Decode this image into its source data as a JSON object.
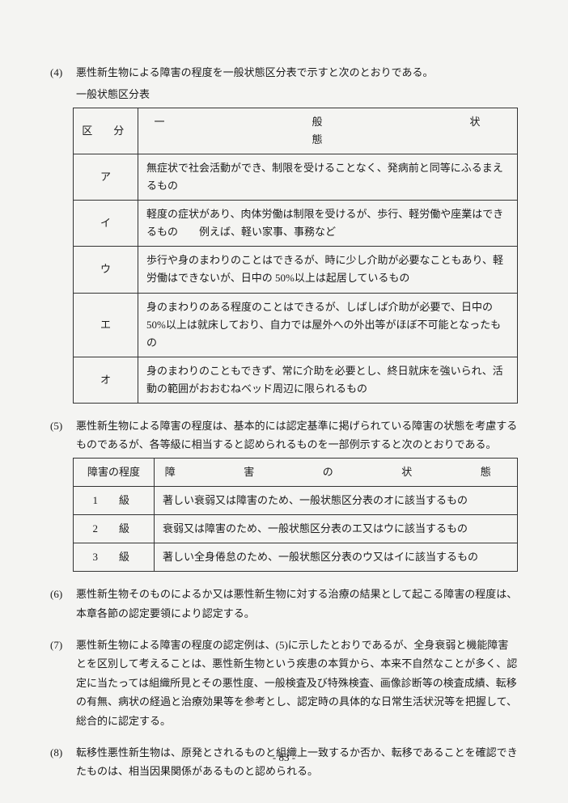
{
  "item4": {
    "num": "(4)",
    "text": "悪性新生物による障害の程度を一般状態区分表で示すと次のとおりである。",
    "tableTitle": "一般状態区分表",
    "header": {
      "left": "区　分",
      "right": "一　　　　般　　　　状　　　　態"
    },
    "rows": [
      {
        "label": "ア",
        "desc": "無症状で社会活動ができ、制限を受けることなく、発病前と同等にふるまえるもの"
      },
      {
        "label": "イ",
        "desc": "軽度の症状があり、肉体労働は制限を受けるが、歩行、軽労働や座業はできるもの　　例えば、軽い家事、事務など"
      },
      {
        "label": "ウ",
        "desc": "歩行や身のまわりのことはできるが、時に少し介助が必要なこともあり、軽労働はできないが、日中の 50%以上は起居しているもの"
      },
      {
        "label": "エ",
        "desc": "身のまわりのある程度のことはできるが、しばしば介助が必要で、日中の 50%以上は就床しており、自力では屋外への外出等がほぼ不可能となったもの"
      },
      {
        "label": "オ",
        "desc": "身のまわりのこともできず、常に介助を必要とし、終日就床を強いられ、活動の範囲がおおむねベッド周辺に限られるもの"
      }
    ]
  },
  "item5": {
    "num": "(5)",
    "text": "悪性新生物による障害の程度は、基本的には認定基準に掲げられている障害の状態を考慮するものであるが、各等級に相当すると認められるものを一部例示すると次のとおりである。",
    "header": {
      "left": "障害の程度",
      "right": "障　　害　　の　　状　　態"
    },
    "rows": [
      {
        "label": "1　級",
        "desc": "著しい衰弱又は障害のため、一般状態区分表のオに該当するもの"
      },
      {
        "label": "2　級",
        "desc": "衰弱又は障害のため、一般状態区分表のエ又はウに該当するもの"
      },
      {
        "label": "3　級",
        "desc": "著しい全身倦怠のため、一般状態区分表のウ又はイに該当するもの"
      }
    ]
  },
  "item6": {
    "num": "(6)",
    "text": "悪性新生物そのものによるか又は悪性新生物に対する治療の結果として起こる障害の程度は、本章各節の認定要領により認定する。"
  },
  "item7": {
    "num": "(7)",
    "text": "悪性新生物による障害の程度の認定例は、(5)に示したとおりであるが、全身衰弱と機能障害とを区別して考えることは、悪性新生物という疾患の本質から、本来不自然なことが多く、認定に当たっては組織所見とその悪性度、一般検査及び特殊検査、画像診断等の検査成績、転移の有無、病状の経過と治療効果等を参考とし、認定時の具体的な日常生活状況等を把握して、総合的に認定する。"
  },
  "item8": {
    "num": "(8)",
    "text": "転移性悪性新生物は、原発とされるものと組織上一致するか否か、転移であることを確認できたものは、相当因果関係があるものと認められる。"
  },
  "pageNum": "- 83 -"
}
